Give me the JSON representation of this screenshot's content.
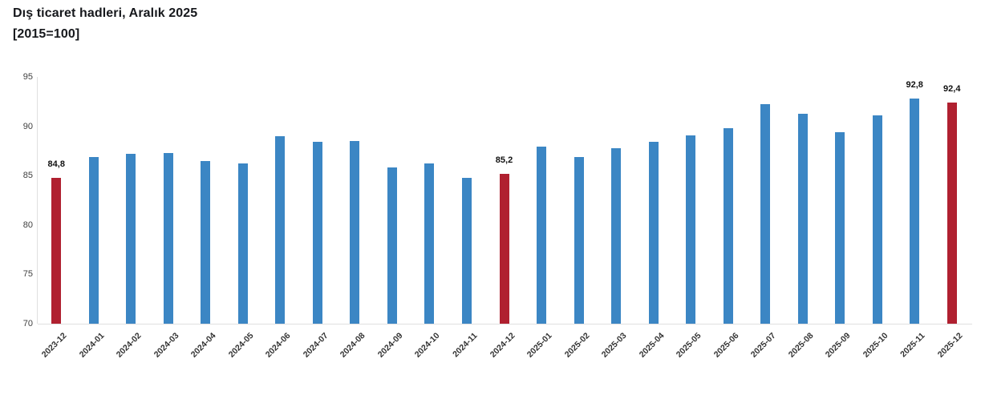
{
  "chart_data": {
    "type": "bar",
    "title": "Dış ticaret hadleri, Aralık 2025",
    "subtitle": "[2015=100]",
    "xlabel": "",
    "ylabel": "",
    "ylim": [
      70,
      95
    ],
    "y_ticks": [
      95,
      90,
      85,
      80,
      75,
      70
    ],
    "grid": false,
    "legend": "none",
    "categories": [
      "2023-12",
      "2024-01",
      "2024-02",
      "2024-03",
      "2024-04",
      "2024-05",
      "2024-06",
      "2024-07",
      "2024-08",
      "2024-09",
      "2024-10",
      "2024-11",
      "2024-12",
      "2025-01",
      "2025-02",
      "2025-03",
      "2025-04",
      "2025-05",
      "2025-06",
      "2025-07",
      "2025-08",
      "2025-09",
      "2025-10",
      "2025-11",
      "2025-12"
    ],
    "values": [
      84.8,
      86.9,
      87.2,
      87.3,
      86.5,
      86.2,
      89.0,
      88.4,
      88.5,
      85.8,
      86.2,
      84.8,
      85.2,
      87.9,
      86.9,
      87.8,
      88.4,
      89.1,
      89.8,
      92.2,
      91.3,
      89.4,
      91.1,
      92.8,
      92.4
    ],
    "highlighted_categories": [
      "2023-12",
      "2024-12",
      "2025-12"
    ],
    "data_labels": [
      {
        "category": "2023-12",
        "text": "84,8"
      },
      {
        "category": "2024-12",
        "text": "85,2"
      },
      {
        "category": "2025-11",
        "text": "92,8"
      },
      {
        "category": "2025-12",
        "text": "92,4"
      }
    ],
    "colors": {
      "bar": "#3b86c4",
      "highlight_bar": "#b02030",
      "axis_line": "#dfdfdf",
      "tick_label": "#404040",
      "value_label": "#111111"
    }
  }
}
